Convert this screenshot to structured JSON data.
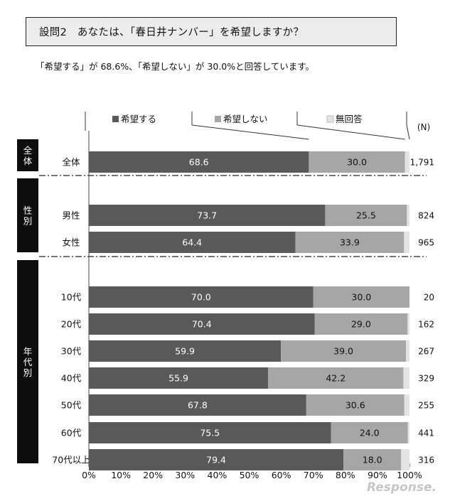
{
  "header": {
    "question": "設問2　あなたは、「春日井ナンバー」を希望しますか？",
    "summary": "「希望する」が 68.6%、「希望しない」が 30.0%と回答しています。"
  },
  "chart_data": {
    "type": "bar",
    "orientation": "horizontal",
    "stacked": true,
    "percent": true,
    "xlim": [
      0,
      100
    ],
    "x_ticks": [
      "0%",
      "10%",
      "20%",
      "30%",
      "40%",
      "50%",
      "60%",
      "70%",
      "80%",
      "90%",
      "100%"
    ],
    "legend": [
      "希望する",
      "希望しない",
      "無回答"
    ],
    "n_label": "(N)",
    "groups": [
      {
        "label": "全体",
        "rows": [
          0
        ]
      },
      {
        "label": "性別",
        "rows": [
          1,
          2
        ]
      },
      {
        "label": "年代別",
        "rows": [
          3,
          4,
          5,
          6,
          7,
          8,
          9
        ]
      }
    ],
    "categories": [
      "全体",
      "男性",
      "女性",
      "10代",
      "20代",
      "30代",
      "40代",
      "50代",
      "60代",
      "70代以上"
    ],
    "series": [
      {
        "name": "希望する",
        "color": "#595959",
        "values": [
          68.6,
          73.7,
          64.4,
          70.0,
          70.4,
          59.9,
          55.9,
          67.8,
          75.5,
          79.4
        ],
        "labels": [
          "68.6",
          "73.7",
          "64.4",
          "70.0",
          "70.4",
          "59.9",
          "55.9",
          "67.8",
          "75.5",
          "79.4"
        ]
      },
      {
        "name": "希望しない",
        "color": "#a6a6a6",
        "values": [
          30.0,
          25.5,
          33.9,
          30.0,
          29.0,
          39.0,
          42.2,
          30.6,
          24.0,
          18.0
        ],
        "labels": [
          "30.0",
          "25.5",
          "33.9",
          "30.0",
          "29.0",
          "39.0",
          "42.2",
          "30.6",
          "24.0",
          "18.0"
        ]
      },
      {
        "name": "無回答",
        "color": "#e3e3e3",
        "values": [
          1.4,
          0.8,
          1.7,
          0.0,
          0.6,
          1.1,
          1.9,
          1.6,
          0.5,
          2.6
        ]
      }
    ],
    "n": [
      "1,791",
      "824",
      "965",
      "20",
      "162",
      "267",
      "329",
      "255",
      "441",
      "316"
    ]
  },
  "watermark": "Response."
}
